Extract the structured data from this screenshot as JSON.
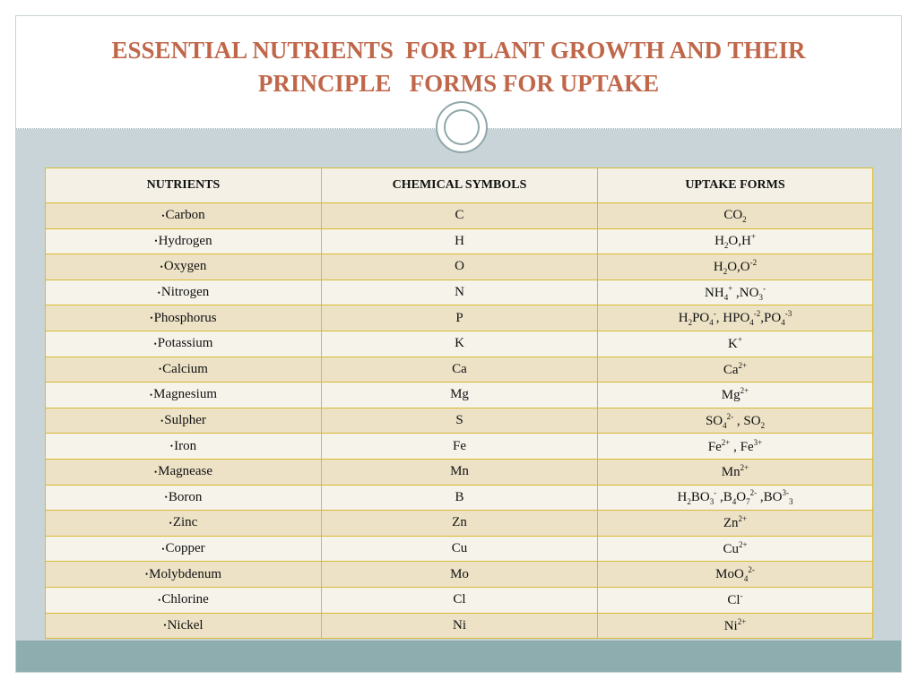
{
  "title": {
    "line1": "ESSENTIAL NUTRIENTS  FOR PLANT GROWTH AND THEIR",
    "line2": "PRINCIPLE   FORMS FOR UPTAKE"
  },
  "colors": {
    "title": "#c0674a",
    "table_border": "#d6ba32",
    "row_shaded": "#ede2c6",
    "row_light": "#f6f3ea",
    "body_bg": "#c9d4d8",
    "footer_bar": "#8dadae"
  },
  "table": {
    "headers": [
      "NUTRIENTS",
      "CHEMICAL SYMBOLS",
      "UPTAKE FORMS"
    ],
    "rows": [
      {
        "nutrient": "Carbon",
        "symbol": "C",
        "uptake": "CO<sub>2</sub>"
      },
      {
        "nutrient": "Hydrogen",
        "symbol": "H",
        "uptake": "H<sub>2</sub>O,H<sup>+</sup>"
      },
      {
        "nutrient": "Oxygen",
        "symbol": "O",
        "uptake": "H<sub>2</sub>O,O<sup>-2</sup>"
      },
      {
        "nutrient": "Nitrogen",
        "symbol": "N",
        "uptake": "NH<sub>4</sub><sup>+</sup> ,NO<sub>3</sub><sup>-</sup>"
      },
      {
        "nutrient": "Phosphorus",
        "symbol": "P",
        "uptake": "H<sub>2</sub>PO<sub>4</sub><sup>-</sup>, HPO<sub>4</sub><sup>-2</sup>,PO<sub>4</sub><sup>-3</sup>"
      },
      {
        "nutrient": "Potassium",
        "symbol": "K",
        "uptake": "K<sup>+</sup>"
      },
      {
        "nutrient": "Calcium",
        "symbol": "Ca",
        "uptake": "Ca<sup>2+</sup>"
      },
      {
        "nutrient": "Magnesium",
        "symbol": "Mg",
        "uptake": "Mg<sup>2+</sup>"
      },
      {
        "nutrient": "Sulpher",
        "symbol": "S",
        "uptake": "SO<sub>4</sub><sup>2-</sup> , SO<sub>2</sub>"
      },
      {
        "nutrient": "Iron",
        "symbol": "Fe",
        "uptake": "Fe<sup>2+</sup> , Fe<sup>3+</sup>"
      },
      {
        "nutrient": "Magnease",
        "symbol": "Mn",
        "uptake": "Mn<sup>2+</sup>"
      },
      {
        "nutrient": "Boron",
        "symbol": "B",
        "uptake": "H<sub>2</sub>BO<sub>3</sub><sup>-</sup> ,B<sub>4</sub>O<sub>7</sub><sup>2-</sup> ,BO<sup>3-</sup><sub>3</sub>"
      },
      {
        "nutrient": "Zinc",
        "symbol": "Zn",
        "uptake": "Zn<sup>2+</sup>"
      },
      {
        "nutrient": "Copper",
        "symbol": "Cu",
        "uptake": "Cu<sup>2+</sup>"
      },
      {
        "nutrient": "Molybdenum",
        "symbol": "Mo",
        "uptake": "MoO<sub>4</sub><sup>2-</sup>"
      },
      {
        "nutrient": "Chlorine",
        "symbol": "Cl",
        "uptake": "Cl<sup>-</sup>"
      },
      {
        "nutrient": "Nickel",
        "symbol": "Ni",
        "uptake": "Ni<sup>2+</sup>"
      }
    ]
  }
}
